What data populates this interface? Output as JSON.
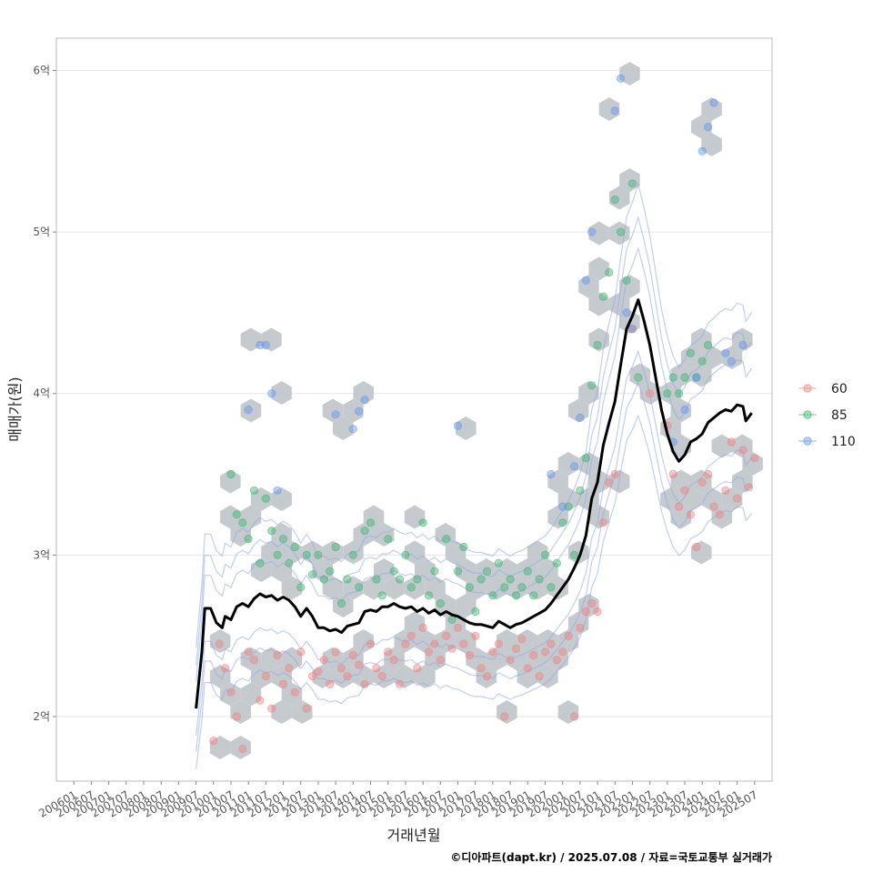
{
  "chart_data": {
    "type": "scatter",
    "xlabel": "거래년월",
    "ylabel": "매매가(원)",
    "caption": "©디아파트(dapt.kr) / 2025.07.08 / 자료=국토교통부 실거래가",
    "x_ticks": [
      "200601",
      "200607",
      "200701",
      "200707",
      "200801",
      "200807",
      "200901",
      "200907",
      "201001",
      "201007",
      "201101",
      "201107",
      "201201",
      "201207",
      "201301",
      "201307",
      "201401",
      "201407",
      "201501",
      "201507",
      "201601",
      "201607",
      "201701",
      "201707",
      "201801",
      "201807",
      "201901",
      "201907",
      "202001",
      "202007",
      "202101",
      "202107",
      "202201",
      "202207",
      "202301",
      "202307",
      "202401",
      "202407",
      "202501",
      "202507"
    ],
    "y_ticks": [
      "2억",
      "3억",
      "4억",
      "5억",
      "6억"
    ],
    "y_tick_values": [
      2,
      3,
      4,
      5,
      6
    ],
    "ylim": [
      1.6,
      6.2
    ],
    "xlim": [
      "200507",
      "202601"
    ],
    "grid": true,
    "legend": {
      "position": "right",
      "entries": [
        {
          "label": "60",
          "color": "#F08080"
        },
        {
          "label": "85",
          "color": "#3CB371"
        },
        {
          "label": "110",
          "color": "#6495ED"
        }
      ]
    },
    "trend_line": {
      "color": "#000000",
      "points": [
        [
          "200907",
          2.05
        ],
        [
          "200909",
          2.4
        ],
        [
          "200910",
          2.67
        ],
        [
          "200912",
          2.67
        ],
        [
          "201002",
          2.58
        ],
        [
          "201004",
          2.55
        ],
        [
          "201005",
          2.62
        ],
        [
          "201007",
          2.6
        ],
        [
          "201009",
          2.68
        ],
        [
          "201011",
          2.7
        ],
        [
          "201101",
          2.68
        ],
        [
          "201103",
          2.73
        ],
        [
          "201105",
          2.76
        ],
        [
          "201107",
          2.74
        ],
        [
          "201109",
          2.75
        ],
        [
          "201111",
          2.72
        ],
        [
          "201201",
          2.74
        ],
        [
          "201203",
          2.72
        ],
        [
          "201205",
          2.68
        ],
        [
          "201207",
          2.62
        ],
        [
          "201209",
          2.67
        ],
        [
          "201211",
          2.62
        ],
        [
          "201301",
          2.55
        ],
        [
          "201303",
          2.55
        ],
        [
          "201305",
          2.53
        ],
        [
          "201307",
          2.54
        ],
        [
          "201309",
          2.52
        ],
        [
          "201311",
          2.56
        ],
        [
          "201401",
          2.57
        ],
        [
          "201403",
          2.58
        ],
        [
          "201405",
          2.65
        ],
        [
          "201407",
          2.66
        ],
        [
          "201409",
          2.65
        ],
        [
          "201411",
          2.68
        ],
        [
          "201501",
          2.68
        ],
        [
          "201503",
          2.7
        ],
        [
          "201505",
          2.68
        ],
        [
          "201507",
          2.67
        ],
        [
          "201509",
          2.68
        ],
        [
          "201511",
          2.65
        ],
        [
          "201601",
          2.67
        ],
        [
          "201603",
          2.64
        ],
        [
          "201605",
          2.66
        ],
        [
          "201607",
          2.63
        ],
        [
          "201609",
          2.65
        ],
        [
          "201611",
          2.63
        ],
        [
          "201701",
          2.62
        ],
        [
          "201703",
          2.6
        ],
        [
          "201705",
          2.58
        ],
        [
          "201707",
          2.57
        ],
        [
          "201709",
          2.57
        ],
        [
          "201711",
          2.56
        ],
        [
          "201801",
          2.55
        ],
        [
          "201803",
          2.59
        ],
        [
          "201805",
          2.57
        ],
        [
          "201807",
          2.55
        ],
        [
          "201809",
          2.57
        ],
        [
          "201811",
          2.58
        ],
        [
          "201901",
          2.6
        ],
        [
          "201903",
          2.62
        ],
        [
          "201905",
          2.64
        ],
        [
          "201907",
          2.66
        ],
        [
          "201909",
          2.7
        ],
        [
          "201911",
          2.75
        ],
        [
          "202001",
          2.8
        ],
        [
          "202003",
          2.85
        ],
        [
          "202005",
          2.92
        ],
        [
          "202007",
          3.0
        ],
        [
          "202009",
          3.12
        ],
        [
          "202011",
          3.35
        ],
        [
          "202101",
          3.45
        ],
        [
          "202103",
          3.68
        ],
        [
          "202105",
          3.82
        ],
        [
          "202107",
          3.95
        ],
        [
          "202109",
          4.18
        ],
        [
          "202111",
          4.4
        ],
        [
          "202201",
          4.48
        ],
        [
          "202203",
          4.58
        ],
        [
          "202205",
          4.45
        ],
        [
          "202207",
          4.3
        ],
        [
          "202209",
          4.1
        ],
        [
          "202211",
          3.9
        ],
        [
          "202301",
          3.75
        ],
        [
          "202303",
          3.64
        ],
        [
          "202305",
          3.58
        ],
        [
          "202307",
          3.62
        ],
        [
          "202309",
          3.7
        ],
        [
          "202311",
          3.72
        ],
        [
          "202401",
          3.75
        ],
        [
          "202403",
          3.82
        ],
        [
          "202405",
          3.85
        ],
        [
          "202407",
          3.88
        ],
        [
          "202409",
          3.9
        ],
        [
          "202411",
          3.89
        ],
        [
          "202501",
          3.93
        ],
        [
          "202503",
          3.92
        ],
        [
          "202504",
          3.83
        ],
        [
          "202506",
          3.88
        ]
      ]
    },
    "series": [
      {
        "name": "60",
        "color": "#F08080",
        "points": [
          [
            "201001",
            1.85
          ],
          [
            "201003",
            2.45
          ],
          [
            "201005",
            2.3
          ],
          [
            "201007",
            2.15
          ],
          [
            "201009",
            2.0
          ],
          [
            "201011",
            1.8
          ],
          [
            "201101",
            2.4
          ],
          [
            "201103",
            2.35
          ],
          [
            "201105",
            2.1
          ],
          [
            "201107",
            2.25
          ],
          [
            "201109",
            2.05
          ],
          [
            "201111",
            2.38
          ],
          [
            "201201",
            2.2
          ],
          [
            "201203",
            2.3
          ],
          [
            "201205",
            2.15
          ],
          [
            "201207",
            2.4
          ],
          [
            "201209",
            2.05
          ],
          [
            "201211",
            2.25
          ],
          [
            "201301",
            2.28
          ],
          [
            "201303",
            2.35
          ],
          [
            "201305",
            2.2
          ],
          [
            "201307",
            2.4
          ],
          [
            "201309",
            2.3
          ],
          [
            "201311",
            2.25
          ],
          [
            "201401",
            2.38
          ],
          [
            "201403",
            2.32
          ],
          [
            "201405",
            2.2
          ],
          [
            "201407",
            2.45
          ],
          [
            "201409",
            2.3
          ],
          [
            "201411",
            2.25
          ],
          [
            "201501",
            2.4
          ],
          [
            "201503",
            2.35
          ],
          [
            "201505",
            2.2
          ],
          [
            "201507",
            2.45
          ],
          [
            "201509",
            2.5
          ],
          [
            "201511",
            2.3
          ],
          [
            "201601",
            2.55
          ],
          [
            "201603",
            2.4
          ],
          [
            "201605",
            2.45
          ],
          [
            "201607",
            2.35
          ],
          [
            "201609",
            2.5
          ],
          [
            "201611",
            2.42
          ],
          [
            "201701",
            2.55
          ],
          [
            "201703",
            2.45
          ],
          [
            "201705",
            2.38
          ],
          [
            "201707",
            2.5
          ],
          [
            "201709",
            2.3
          ],
          [
            "201711",
            2.25
          ],
          [
            "201801",
            2.4
          ],
          [
            "201803",
            2.45
          ],
          [
            "201805",
            2.0
          ],
          [
            "201807",
            2.35
          ],
          [
            "201809",
            2.42
          ],
          [
            "201811",
            2.48
          ],
          [
            "201901",
            2.3
          ],
          [
            "201903",
            2.38
          ],
          [
            "201905",
            2.25
          ],
          [
            "201907",
            2.4
          ],
          [
            "201909",
            2.45
          ],
          [
            "201911",
            2.35
          ],
          [
            "202001",
            2.4
          ],
          [
            "202003",
            2.5
          ],
          [
            "202005",
            2.0
          ],
          [
            "202007",
            2.55
          ],
          [
            "202009",
            2.65
          ],
          [
            "202011",
            2.7
          ],
          [
            "202101",
            2.65
          ],
          [
            "202103",
            3.2
          ],
          [
            "202105",
            3.45
          ],
          [
            "202107",
            3.5
          ],
          [
            "202201",
            4.4
          ],
          [
            "202207",
            4.0
          ],
          [
            "202301",
            3.8
          ],
          [
            "202303",
            3.5
          ],
          [
            "202305",
            3.3
          ],
          [
            "202307",
            3.4
          ],
          [
            "202309",
            3.25
          ],
          [
            "202311",
            3.05
          ],
          [
            "202401",
            3.45
          ],
          [
            "202403",
            3.5
          ],
          [
            "202405",
            3.3
          ],
          [
            "202407",
            3.25
          ],
          [
            "202409",
            3.4
          ],
          [
            "202411",
            3.7
          ],
          [
            "202501",
            3.35
          ],
          [
            "202503",
            3.65
          ],
          [
            "202505",
            3.42
          ],
          [
            "202507",
            3.6
          ]
        ]
      },
      {
        "name": "85",
        "color": "#3CB371",
        "points": [
          [
            "201007",
            3.5
          ],
          [
            "201009",
            3.25
          ],
          [
            "201011",
            3.2
          ],
          [
            "201101",
            3.1
          ],
          [
            "201103",
            3.4
          ],
          [
            "201105",
            2.95
          ],
          [
            "201107",
            3.35
          ],
          [
            "201109",
            3.15
          ],
          [
            "201111",
            3.0
          ],
          [
            "201201",
            3.1
          ],
          [
            "201203",
            2.95
          ],
          [
            "201205",
            3.05
          ],
          [
            "201207",
            2.8
          ],
          [
            "201209",
            3.0
          ],
          [
            "201211",
            2.88
          ],
          [
            "201301",
            3.0
          ],
          [
            "201303",
            2.85
          ],
          [
            "201305",
            2.9
          ],
          [
            "201307",
            3.05
          ],
          [
            "201309",
            2.7
          ],
          [
            "201311",
            2.85
          ],
          [
            "201401",
            3.0
          ],
          [
            "201403",
            2.8
          ],
          [
            "201405",
            3.15
          ],
          [
            "201407",
            3.2
          ],
          [
            "201409",
            2.85
          ],
          [
            "201411",
            2.75
          ],
          [
            "201501",
            3.1
          ],
          [
            "201503",
            2.9
          ],
          [
            "201505",
            2.85
          ],
          [
            "201507",
            3.0
          ],
          [
            "201509",
            2.8
          ],
          [
            "201511",
            2.85
          ],
          [
            "201601",
            3.2
          ],
          [
            "201603",
            2.75
          ],
          [
            "201605",
            2.9
          ],
          [
            "201607",
            2.7
          ],
          [
            "201609",
            3.1
          ],
          [
            "201611",
            2.6
          ],
          [
            "201701",
            2.9
          ],
          [
            "201703",
            3.05
          ],
          [
            "201705",
            2.8
          ],
          [
            "201707",
            2.65
          ],
          [
            "201709",
            2.85
          ],
          [
            "201711",
            2.9
          ],
          [
            "201801",
            2.75
          ],
          [
            "201803",
            2.95
          ],
          [
            "201805",
            2.8
          ],
          [
            "201807",
            2.85
          ],
          [
            "201809",
            2.75
          ],
          [
            "201811",
            2.8
          ],
          [
            "201901",
            2.9
          ],
          [
            "201903",
            2.75
          ],
          [
            "201905",
            2.85
          ],
          [
            "201907",
            3.0
          ],
          [
            "201909",
            2.8
          ],
          [
            "201911",
            2.95
          ],
          [
            "202001",
            3.2
          ],
          [
            "202003",
            3.3
          ],
          [
            "202005",
            3.0
          ],
          [
            "202007",
            3.4
          ],
          [
            "202009",
            3.6
          ],
          [
            "202011",
            4.05
          ],
          [
            "202101",
            4.3
          ],
          [
            "202103",
            4.6
          ],
          [
            "202105",
            4.75
          ],
          [
            "202107",
            5.2
          ],
          [
            "202109",
            5.0
          ],
          [
            "202111",
            4.7
          ],
          [
            "202201",
            5.3
          ],
          [
            "202203",
            4.1
          ],
          [
            "202301",
            4.0
          ],
          [
            "202303",
            4.1
          ],
          [
            "202305",
            4.0
          ],
          [
            "202307",
            4.1
          ],
          [
            "202309",
            4.25
          ],
          [
            "202311",
            4.1
          ],
          [
            "202401",
            4.2
          ],
          [
            "202403",
            4.3
          ]
        ]
      },
      {
        "name": "110",
        "color": "#6495ED",
        "points": [
          [
            "201101",
            3.9
          ],
          [
            "201105",
            4.3
          ],
          [
            "201107",
            4.3
          ],
          [
            "201109",
            4.0
          ],
          [
            "201111",
            3.4
          ],
          [
            "201307",
            3.87
          ],
          [
            "201401",
            3.78
          ],
          [
            "201403",
            3.89
          ],
          [
            "201405",
            3.96
          ],
          [
            "201701",
            3.8
          ],
          [
            "201909",
            3.5
          ],
          [
            "202001",
            3.3
          ],
          [
            "202005",
            3.55
          ],
          [
            "202007",
            3.85
          ],
          [
            "202009",
            4.7
          ],
          [
            "202011",
            5.0
          ],
          [
            "202107",
            5.75
          ],
          [
            "202109",
            5.95
          ],
          [
            "202111",
            4.5
          ],
          [
            "202201",
            4.4
          ],
          [
            "202303",
            3.7
          ],
          [
            "202307",
            3.9
          ],
          [
            "202311",
            4.1
          ],
          [
            "202401",
            5.5
          ],
          [
            "202403",
            5.65
          ],
          [
            "202405",
            5.8
          ],
          [
            "202409",
            4.25
          ],
          [
            "202411",
            4.2
          ],
          [
            "202503",
            4.3
          ]
        ]
      }
    ]
  }
}
